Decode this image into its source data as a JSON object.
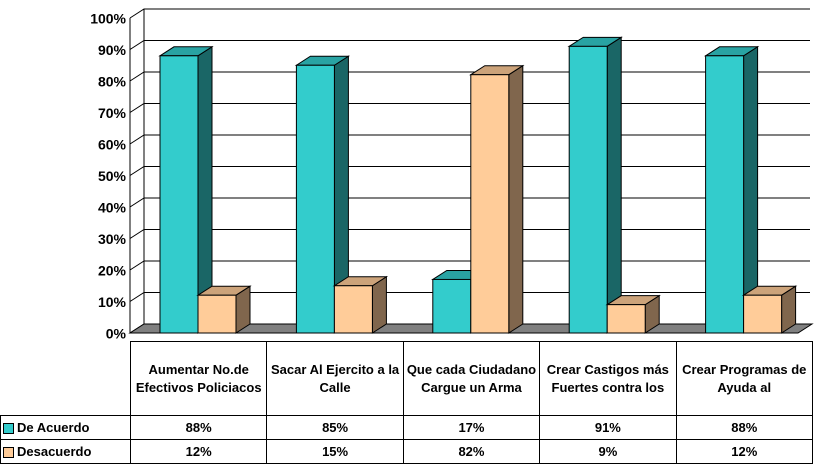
{
  "chart_data": {
    "type": "bar3d",
    "categories": [
      "Aumentar No.de Efectivos Policiacos",
      "Sacar Al Ejercito a la Calle",
      "Que cada Ciudadano Cargue un Arma",
      "Crear Castigos más Fuertes contra los",
      "Crear Programas de Ayuda al"
    ],
    "series": [
      {
        "name": "De Acuerdo",
        "color": "#33CCCC",
        "values": [
          88,
          85,
          17,
          91,
          88
        ],
        "value_labels": [
          "88%",
          "85%",
          "17%",
          "91%",
          "88%"
        ]
      },
      {
        "name": "Desacuerdo",
        "color": "#FFCC99",
        "values": [
          12,
          15,
          82,
          9,
          12
        ],
        "value_labels": [
          "12%",
          "15%",
          "82%",
          "9%",
          "12%"
        ]
      }
    ],
    "ylim": [
      0,
      100
    ],
    "yticks": [
      {
        "value": 0,
        "label": "0%"
      },
      {
        "value": 10,
        "label": "10%"
      },
      {
        "value": 20,
        "label": "20%"
      },
      {
        "value": 30,
        "label": "30%"
      },
      {
        "value": 40,
        "label": "40%"
      },
      {
        "value": 50,
        "label": "50%"
      },
      {
        "value": 60,
        "label": "60%"
      },
      {
        "value": 70,
        "label": "70%"
      },
      {
        "value": 80,
        "label": "80%"
      },
      {
        "value": 90,
        "label": "90%"
      },
      {
        "value": 100,
        "label": "100%"
      }
    ],
    "grid": true
  }
}
